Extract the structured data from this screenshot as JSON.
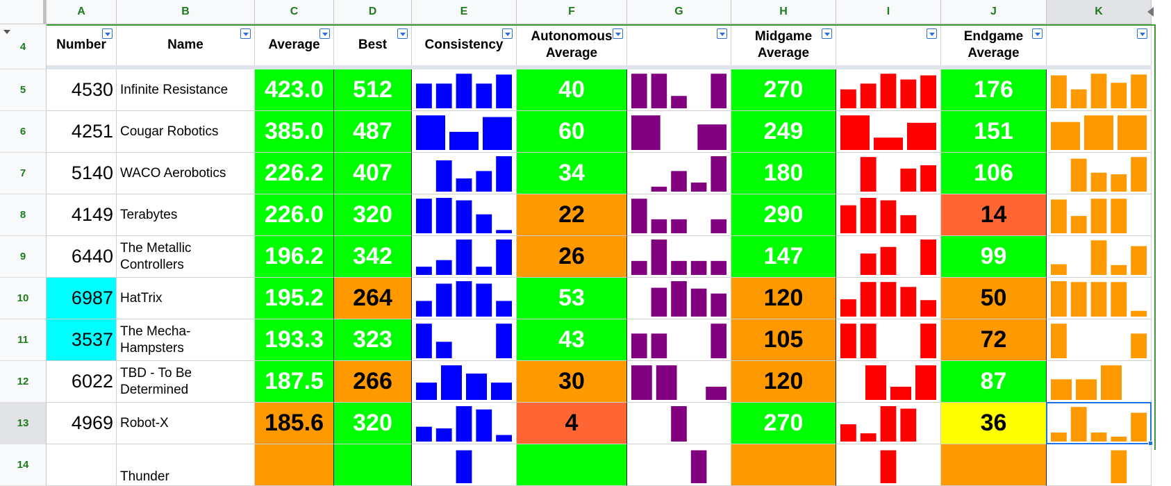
{
  "colors": {
    "green": "#00ff00",
    "orange": "#ff9900",
    "red_orange": "#ff6633",
    "yellow": "#ffff00",
    "cyan": "#00ffff",
    "spark_E": "#0000ff",
    "spark_G": "#800080",
    "spark_I": "#ff0000",
    "spark_K": "#ff9900"
  },
  "column_letters": [
    "A",
    "B",
    "C",
    "D",
    "E",
    "F",
    "G",
    "H",
    "I",
    "J",
    "K"
  ],
  "header_row_number": "4",
  "headers": [
    "Number",
    "Name",
    "Average",
    "Best",
    "Consistency",
    "Autonomous Average",
    "",
    "Midgame Average",
    "",
    "Endgame Average",
    ""
  ],
  "selected_cell": "K13",
  "rows": [
    {
      "row": "5",
      "number": "4530",
      "name": "Infinite Resistance",
      "average": "423.0",
      "average_fill": "green",
      "best": "512",
      "best_fill": "green",
      "auto": "40",
      "auto_fill": "green",
      "mid": "270",
      "mid_fill": "green",
      "end": "176",
      "end_fill": "green",
      "spark_E": [
        3,
        3,
        4.2,
        3,
        4.1
      ],
      "spark_G": [
        4.2,
        4.2,
        1.5,
        0,
        4.2
      ],
      "spark_I": [
        2.3,
        3,
        4.2,
        3.5,
        4
      ],
      "spark_K": [
        4,
        2.3,
        4.2,
        3.1,
        4.1
      ]
    },
    {
      "row": "6",
      "number": "4251",
      "name": "Cougar Robotics",
      "average": "385.0",
      "average_fill": "green",
      "best": "487",
      "best_fill": "green",
      "auto": "60",
      "auto_fill": "green",
      "mid": "249",
      "mid_fill": "green",
      "end": "151",
      "end_fill": "green",
      "spark_E": [
        4.2,
        2.2,
        4
      ],
      "spark_G": [
        4.2,
        0,
        3.1
      ],
      "spark_I": [
        4.2,
        1.5,
        3.3
      ],
      "spark_K": [
        3.4,
        4.2,
        4.2
      ]
    },
    {
      "row": "7",
      "number": "5140",
      "name": "WACO Aerobotics",
      "average": "226.2",
      "average_fill": "green",
      "best": "407",
      "best_fill": "green",
      "auto": "34",
      "auto_fill": "green",
      "mid": "180",
      "mid_fill": "green",
      "end": "106",
      "end_fill": "green",
      "spark_E": [
        0,
        3.8,
        1.6,
        2.5,
        4.3
      ],
      "spark_G": [
        0,
        0.6,
        2.5,
        1.1,
        4.3
      ],
      "spark_I": [
        0,
        4.2,
        0,
        2.8,
        3.2
      ],
      "spark_K": [
        0,
        4,
        2.3,
        2.1,
        4.2
      ]
    },
    {
      "row": "8",
      "number": "4149",
      "name": "Terabytes",
      "average": "226.0",
      "average_fill": "green",
      "best": "320",
      "best_fill": "green",
      "auto": "22",
      "auto_fill": "orange",
      "mid": "290",
      "mid_fill": "green",
      "end": "14",
      "end_fill": "red_orange",
      "spark_E": [
        4.2,
        4.3,
        4,
        2.3,
        0.4
      ],
      "spark_G": [
        4.2,
        1.7,
        1.7,
        0,
        1.7
      ],
      "spark_I": [
        3.4,
        4.3,
        4,
        2.2,
        0
      ],
      "spark_K": [
        4.1,
        2.1,
        4.2,
        4.2,
        0
      ]
    },
    {
      "row": "9",
      "number": "6440",
      "name": "The Metallic Controllers",
      "average": "196.2",
      "average_fill": "green",
      "best": "342",
      "best_fill": "green",
      "auto": "26",
      "auto_fill": "orange",
      "mid": "147",
      "mid_fill": "green",
      "end": "99",
      "end_fill": "green",
      "spark_E": [
        1,
        1.8,
        4.3,
        1,
        4.3
      ],
      "spark_G": [
        1.7,
        4.3,
        1.7,
        1.7,
        1.7
      ],
      "spark_I": [
        0,
        2.6,
        3.4,
        0,
        4.3
      ],
      "spark_K": [
        1.3,
        0,
        4.2,
        1.2,
        3.5
      ]
    },
    {
      "row": "10",
      "number": "6987",
      "number_fill": "cyan",
      "name": "HatTrix",
      "average": "195.2",
      "average_fill": "green",
      "best": "264",
      "best_fill": "orange",
      "auto": "53",
      "auto_fill": "green",
      "mid": "120",
      "mid_fill": "orange",
      "end": "50",
      "end_fill": "orange",
      "spark_E": [
        1.9,
        4,
        4.3,
        4,
        1.9
      ],
      "spark_G": [
        0,
        3.5,
        4.3,
        3.4,
        2.8
      ],
      "spark_I": [
        2.1,
        4.2,
        4.2,
        3.6,
        2
      ],
      "spark_K": [
        4.3,
        4.2,
        4.2,
        4.2,
        0.7
      ]
    },
    {
      "row": "11",
      "number": "3537",
      "number_fill": "cyan",
      "name": "The Mecha-Hampsters",
      "average": "193.3",
      "average_fill": "green",
      "best": "323",
      "best_fill": "green",
      "auto": "43",
      "auto_fill": "green",
      "mid": "105",
      "mid_fill": "orange",
      "end": "72",
      "end_fill": "orange",
      "spark_E": [
        4.2,
        2,
        0,
        0,
        4.2
      ],
      "spark_G": [
        3,
        3,
        0,
        0,
        4.2
      ],
      "spark_I": [
        4.2,
        4.2,
        0,
        0,
        4.2
      ],
      "spark_K": [
        4.2,
        0,
        0,
        0,
        3
      ]
    },
    {
      "row": "12",
      "number": "6022",
      "name": "TBD - To Be Determined",
      "average": "187.5",
      "average_fill": "green",
      "best": "266",
      "best_fill": "orange",
      "auto": "30",
      "auto_fill": "orange",
      "mid": "120",
      "mid_fill": "orange",
      "end": "87",
      "end_fill": "green",
      "spark_E": [
        2.1,
        4.2,
        3.2,
        2.1
      ],
      "spark_G": [
        4.2,
        4.2,
        0,
        1.6
      ],
      "spark_I": [
        0,
        4.2,
        1.6,
        4.2
      ],
      "spark_K": [
        2.5,
        2.5,
        4.2,
        0
      ]
    },
    {
      "row": "13",
      "number": "4969",
      "name": "Robot-X",
      "average": "185.6",
      "average_fill": "orange",
      "best": "320",
      "best_fill": "green",
      "auto": "4",
      "auto_fill": "red_orange",
      "mid": "270",
      "mid_fill": "green",
      "end": "36",
      "end_fill": "yellow",
      "spark_E": [
        1.8,
        1.6,
        4.3,
        3.9,
        0.8
      ],
      "spark_G": [
        0,
        0,
        4.3,
        0,
        0
      ],
      "spark_I": [
        2.1,
        1,
        4.3,
        4,
        0
      ],
      "spark_K": [
        1.1,
        4.2,
        1.1,
        0.6,
        3.5
      ]
    },
    {
      "row": "14",
      "number": "",
      "name": "Thunder",
      "average": "",
      "average_fill": "orange",
      "best": "",
      "best_fill": "green",
      "auto": "",
      "auto_fill": "green",
      "mid": "",
      "mid_fill": "orange",
      "end": "",
      "end_fill": "orange",
      "spark_E": [
        0,
        0,
        4,
        0,
        0
      ],
      "spark_G": [
        0,
        0,
        0,
        4,
        0
      ],
      "spark_I": [
        0,
        0,
        4,
        0,
        0
      ],
      "spark_K": [
        0,
        0,
        0,
        4,
        0
      ]
    }
  ]
}
